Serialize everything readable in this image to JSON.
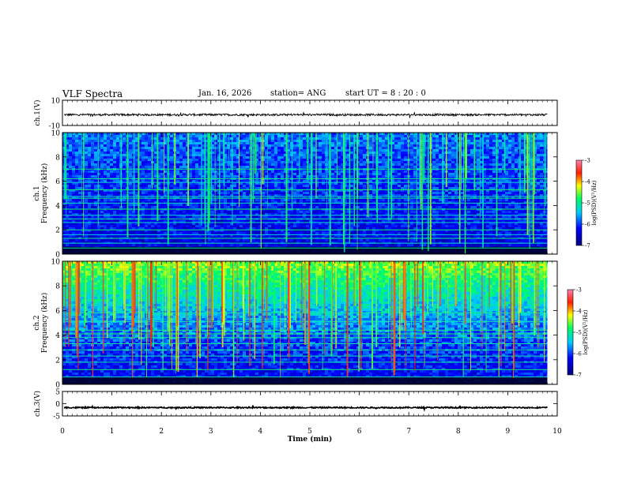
{
  "header": {
    "title": "VLF Spectra",
    "date": "Jan. 16, 2026",
    "station": "station= ANG",
    "start": "start  UT =   8  : 20 : 0"
  },
  "chart_data": [
    {
      "id": "ch1",
      "type": "line",
      "ylabel": "ch.1(V)",
      "ylim": [
        -10,
        10
      ],
      "y_ticks": [
        "10",
        "-10"
      ],
      "mean_level": -1.5,
      "noise_amplitude": 0.8
    },
    {
      "id": "spec1",
      "type": "heatmap",
      "ylabel": "ch.1\nFrequency (kHz)",
      "ylabel_line1": "ch.1",
      "ylabel_line2": "Frequency (kHz)",
      "ylim": [
        0,
        10
      ],
      "y_ticks": [
        "0",
        "2",
        "4",
        "6",
        "8",
        "10"
      ],
      "colorbar": {
        "label": "log(PSD)(V²/Hz)",
        "range": [
          -7,
          -3
        ],
        "ticks": [
          "-3",
          "-4",
          "-5",
          "-6",
          "-7"
        ]
      },
      "band_lines_khz": [
        0.5,
        0.9,
        1.3,
        1.6,
        2.0,
        2.6,
        2.9,
        3.2,
        3.7,
        4.2,
        4.6,
        4.75,
        5.3,
        5.9,
        6.2,
        7.0
      ],
      "x_range_min": [
        0,
        9.8
      ]
    },
    {
      "id": "spec2",
      "type": "heatmap",
      "ylabel": "ch.2\nFrequency (kHz)",
      "ylabel_line1": "ch.2",
      "ylabel_line2": "Frequency (kHz)",
      "ylim": [
        0,
        10
      ],
      "y_ticks": [
        "0",
        "2",
        "4",
        "6",
        "8",
        "10"
      ],
      "colorbar": {
        "label": "log(PSD)(V²/Hz)",
        "range": [
          -7,
          -3
        ],
        "ticks": [
          "-3",
          "-4",
          "-5",
          "-6",
          "-7"
        ]
      },
      "band_lines_khz": [
        0.6,
        1.2,
        1.8,
        2.3,
        2.8,
        3.3,
        3.8,
        4.1,
        4.4,
        5.1,
        5.8
      ],
      "x_range_min": [
        0,
        9.8
      ]
    },
    {
      "id": "ch3",
      "type": "line",
      "ylabel": "ch.3(V)",
      "ylim": [
        -5,
        5
      ],
      "y_ticks": [
        "5",
        "0",
        "-5"
      ],
      "mean_level": -1.6,
      "noise_amplitude": 0.25
    }
  ],
  "x_axis": {
    "label": "Time (min)",
    "range": [
      0,
      10
    ],
    "ticks": [
      "0",
      "1",
      "2",
      "3",
      "4",
      "5",
      "6",
      "7",
      "8",
      "9",
      "10"
    ]
  },
  "colors": {
    "background": "#ffffff",
    "trace": "#000000"
  }
}
